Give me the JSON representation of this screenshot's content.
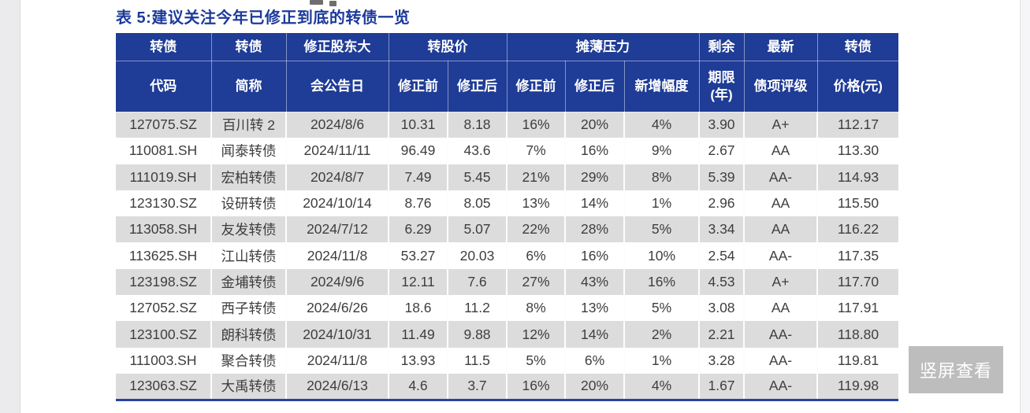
{
  "doc": {
    "table_title": "表 5:建议关注今年已修正到底的转债一览"
  },
  "colors": {
    "header_navy": "#1f3c96",
    "title_blue": "#1c3a9c",
    "stripe_gray": "#dcdcdc",
    "bottom_rule_navy": "#2443a5",
    "overlay_gray": "#bdbdbd"
  },
  "table": {
    "header_row1": [
      "转债",
      "转债",
      "修正股东大",
      "转股价",
      "摊薄压力",
      "剩余",
      "最新",
      "转债"
    ],
    "header_row2": [
      "代码",
      "简称",
      "会公告日",
      "修正前",
      "修正后",
      "修正前",
      "修正后",
      "新增幅度",
      "期限\n(年)",
      "债项评级",
      "价格(元)"
    ],
    "rows": [
      [
        "127075.SZ",
        "百川转 2",
        "2024/8/6",
        "10.31",
        "8.18",
        "16%",
        "20%",
        "4%",
        "3.90",
        "A+",
        "112.17"
      ],
      [
        "110081.SH",
        "闻泰转债",
        "2024/11/11",
        "96.49",
        "43.6",
        "7%",
        "16%",
        "9%",
        "2.67",
        "AA",
        "113.30"
      ],
      [
        "111019.SH",
        "宏柏转债",
        "2024/8/7",
        "7.49",
        "5.45",
        "21%",
        "29%",
        "8%",
        "5.39",
        "AA-",
        "114.93"
      ],
      [
        "123130.SZ",
        "设研转债",
        "2024/10/14",
        "8.76",
        "8.05",
        "13%",
        "14%",
        "1%",
        "2.96",
        "AA",
        "115.50"
      ],
      [
        "113058.SH",
        "友发转债",
        "2024/7/12",
        "6.29",
        "5.07",
        "22%",
        "28%",
        "5%",
        "3.34",
        "AA",
        "116.22"
      ],
      [
        "113625.SH",
        "江山转债",
        "2024/11/8",
        "53.27",
        "20.03",
        "6%",
        "16%",
        "10%",
        "2.54",
        "AA-",
        "117.35"
      ],
      [
        "123198.SZ",
        "金埔转债",
        "2024/9/6",
        "12.11",
        "7.6",
        "27%",
        "43%",
        "16%",
        "4.53",
        "A+",
        "117.70"
      ],
      [
        "127052.SZ",
        "西子转债",
        "2024/6/26",
        "18.6",
        "11.2",
        "8%",
        "13%",
        "5%",
        "3.08",
        "AA",
        "117.91"
      ],
      [
        "123100.SZ",
        "朗科转债",
        "2024/10/31",
        "11.49",
        "9.88",
        "12%",
        "14%",
        "2%",
        "2.21",
        "AA-",
        "118.80"
      ],
      [
        "111003.SH",
        "聚合转债",
        "2024/11/8",
        "13.93",
        "11.5",
        "5%",
        "6%",
        "1%",
        "3.28",
        "AA-",
        "119.81"
      ],
      [
        "123063.SZ",
        "大禹转债",
        "2024/6/13",
        "4.6",
        "3.7",
        "16%",
        "20%",
        "4%",
        "1.67",
        "AA-",
        "119.98"
      ]
    ]
  },
  "overlay": {
    "portrait_view_label": "竖屏查看"
  }
}
